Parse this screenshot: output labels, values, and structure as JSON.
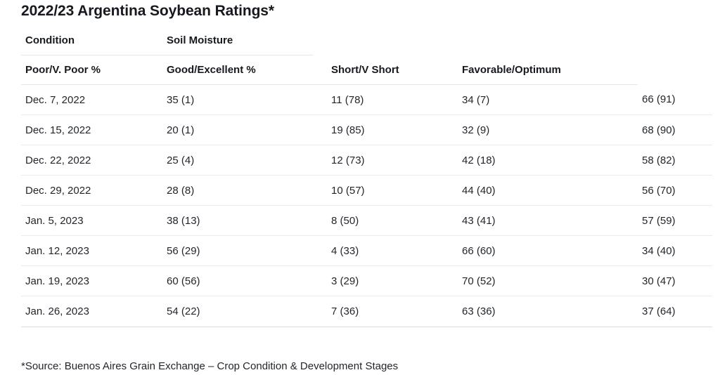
{
  "title": "2022/23 Argentina Soybean Ratings*",
  "source_note": "*Source: Buenos Aires Grain Exchange – Crop Condition & Development Stages",
  "colors": {
    "background": "#ffffff",
    "text": "#22262b",
    "heading_text": "#16191d",
    "header_border": "#e3e6ea",
    "row_border": "#e9ebee",
    "bottom_border": "#d9dce0"
  },
  "chart_data": {
    "type": "table",
    "title": "2022/23 Argentina Soybean Ratings*",
    "group_headers": [
      "Condition",
      "Soil Moisture"
    ],
    "column_headers": [
      "Poor/V. Poor %",
      "Good/Excellent %",
      "Short/V Short",
      "Favorable/Optimum"
    ],
    "rows": [
      [
        "Dec. 7, 2022",
        "35 (1)",
        "11 (78)",
        "34 (7)",
        "66 (91)"
      ],
      [
        "Dec. 15, 2022",
        "20 (1)",
        "19 (85)",
        "32 (9)",
        "68 (90)"
      ],
      [
        "Dec. 22, 2022",
        "25 (4)",
        "12 (73)",
        "42 (18)",
        "58 (82)"
      ],
      [
        "Dec. 29, 2022",
        "28 (8)",
        "10 (57)",
        "44 (40)",
        "56 (70)"
      ],
      [
        "Jan. 5, 2023",
        "38 (13)",
        "8 (50)",
        "43 (41)",
        "57 (59)"
      ],
      [
        "Jan. 12, 2023",
        "56 (29)",
        "4 (33)",
        "66 (60)",
        "34 (40)"
      ],
      [
        "Jan. 19, 2023",
        "60 (56)",
        "3 (29)",
        "70 (52)",
        "30 (47)"
      ],
      [
        "Jan. 26, 2023",
        "54 (22)",
        "7 (36)",
        "63 (36)",
        "37 (64)"
      ]
    ],
    "source": "*Source: Buenos Aires Grain Exchange – Crop Condition & Development Stages",
    "layout_hints": {
      "grid": "horizontal row separators only",
      "fifth_column_has_no_header": true
    }
  }
}
